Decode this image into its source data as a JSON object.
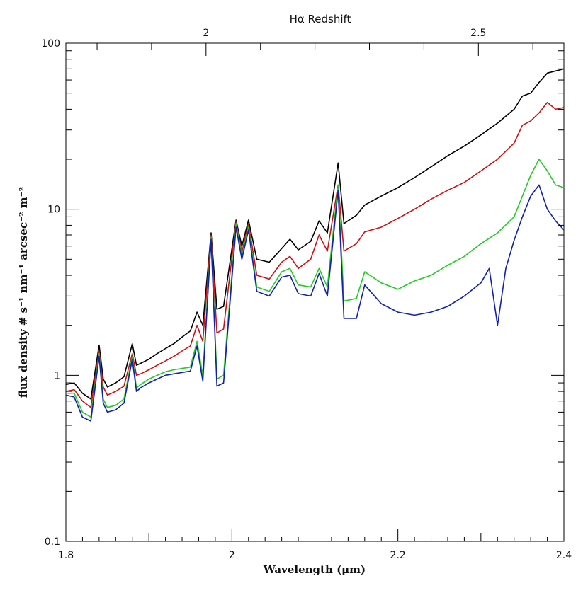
{
  "chart_data": {
    "type": "line",
    "title": "",
    "xlabel": "Wavelength (μm)",
    "ylabel": "flux density # s⁻¹ nm⁻¹ arcsec⁻² m⁻²",
    "top_axis_label": "Hα Redshift",
    "xlim": [
      1.8,
      2.4
    ],
    "ylim": [
      0.1,
      100
    ],
    "yscale": "log",
    "grid": false,
    "legend": "none",
    "x_ticks": [
      {
        "value": 1.8,
        "label": "1.8"
      },
      {
        "value": 2.0,
        "label": "2"
      },
      {
        "value": 2.2,
        "label": "2.2"
      },
      {
        "value": 2.4,
        "label": "2.4"
      }
    ],
    "y_ticks": [
      {
        "value": 0.1,
        "label": "0.1"
      },
      {
        "value": 1,
        "label": "1"
      },
      {
        "value": 10,
        "label": "10"
      },
      {
        "value": 100,
        "label": "100"
      }
    ],
    "top_ticks": [
      {
        "redshift": 2.0,
        "label": "2"
      },
      {
        "redshift": 2.5,
        "label": "2.5"
      }
    ],
    "series": [
      {
        "color": "#000000",
        "points": [
          [
            1.8,
            0.88
          ],
          [
            1.81,
            0.9
          ],
          [
            1.82,
            0.78
          ],
          [
            1.83,
            0.72
          ],
          [
            1.84,
            1.52
          ],
          [
            1.845,
            0.95
          ],
          [
            1.85,
            0.85
          ],
          [
            1.86,
            0.9
          ],
          [
            1.87,
            0.98
          ],
          [
            1.88,
            1.55
          ],
          [
            1.885,
            1.15
          ],
          [
            1.89,
            1.18
          ],
          [
            1.9,
            1.25
          ],
          [
            1.91,
            1.35
          ],
          [
            1.92,
            1.45
          ],
          [
            1.93,
            1.55
          ],
          [
            1.94,
            1.7
          ],
          [
            1.95,
            1.85
          ],
          [
            1.958,
            2.4
          ],
          [
            1.965,
            2.0
          ],
          [
            1.975,
            7.2
          ],
          [
            1.982,
            2.5
          ],
          [
            1.99,
            2.6
          ],
          [
            2.005,
            8.6
          ],
          [
            2.012,
            6.0
          ],
          [
            2.02,
            8.6
          ],
          [
            2.03,
            5.0
          ],
          [
            2.045,
            4.8
          ],
          [
            2.06,
            5.8
          ],
          [
            2.07,
            6.6
          ],
          [
            2.08,
            5.7
          ],
          [
            2.095,
            6.4
          ],
          [
            2.105,
            8.5
          ],
          [
            2.115,
            7.2
          ],
          [
            2.128,
            19.0
          ],
          [
            2.135,
            8.2
          ],
          [
            2.15,
            9.2
          ],
          [
            2.16,
            10.6
          ],
          [
            2.18,
            12.0
          ],
          [
            2.2,
            13.5
          ],
          [
            2.22,
            15.5
          ],
          [
            2.24,
            18.0
          ],
          [
            2.26,
            21.0
          ],
          [
            2.28,
            24.0
          ],
          [
            2.3,
            28.0
          ],
          [
            2.32,
            33.0
          ],
          [
            2.34,
            40.0
          ],
          [
            2.35,
            48.0
          ],
          [
            2.36,
            50.0
          ],
          [
            2.37,
            58.0
          ],
          [
            2.38,
            66.0
          ],
          [
            2.39,
            68.0
          ],
          [
            2.4,
            70.0
          ]
        ]
      },
      {
        "color": "#cc1111",
        "points": [
          [
            1.8,
            0.8
          ],
          [
            1.81,
            0.82
          ],
          [
            1.82,
            0.7
          ],
          [
            1.83,
            0.64
          ],
          [
            1.84,
            1.4
          ],
          [
            1.845,
            0.85
          ],
          [
            1.85,
            0.76
          ],
          [
            1.86,
            0.8
          ],
          [
            1.87,
            0.86
          ],
          [
            1.88,
            1.35
          ],
          [
            1.885,
            1.0
          ],
          [
            1.89,
            1.02
          ],
          [
            1.9,
            1.08
          ],
          [
            1.91,
            1.15
          ],
          [
            1.92,
            1.22
          ],
          [
            1.93,
            1.3
          ],
          [
            1.94,
            1.4
          ],
          [
            1.95,
            1.5
          ],
          [
            1.958,
            2.0
          ],
          [
            1.965,
            1.6
          ],
          [
            1.975,
            7.0
          ],
          [
            1.982,
            1.8
          ],
          [
            1.99,
            1.9
          ],
          [
            2.005,
            8.4
          ],
          [
            2.012,
            5.5
          ],
          [
            2.02,
            8.2
          ],
          [
            2.03,
            4.0
          ],
          [
            2.045,
            3.8
          ],
          [
            2.06,
            4.8
          ],
          [
            2.07,
            5.2
          ],
          [
            2.08,
            4.4
          ],
          [
            2.095,
            5.0
          ],
          [
            2.105,
            7.0
          ],
          [
            2.115,
            5.6
          ],
          [
            2.128,
            14.0
          ],
          [
            2.135,
            5.6
          ],
          [
            2.15,
            6.2
          ],
          [
            2.16,
            7.3
          ],
          [
            2.18,
            7.8
          ],
          [
            2.2,
            8.8
          ],
          [
            2.22,
            10.0
          ],
          [
            2.24,
            11.5
          ],
          [
            2.26,
            13.0
          ],
          [
            2.28,
            14.5
          ],
          [
            2.3,
            17.0
          ],
          [
            2.32,
            20.0
          ],
          [
            2.34,
            25.0
          ],
          [
            2.35,
            32.0
          ],
          [
            2.36,
            34.0
          ],
          [
            2.37,
            38.0
          ],
          [
            2.38,
            44.0
          ],
          [
            2.39,
            40.0
          ],
          [
            2.4,
            41.0
          ]
        ]
      },
      {
        "color": "#22cc22",
        "points": [
          [
            1.8,
            0.78
          ],
          [
            1.81,
            0.78
          ],
          [
            1.82,
            0.6
          ],
          [
            1.83,
            0.56
          ],
          [
            1.84,
            1.35
          ],
          [
            1.845,
            0.72
          ],
          [
            1.85,
            0.64
          ],
          [
            1.86,
            0.66
          ],
          [
            1.87,
            0.72
          ],
          [
            1.88,
            1.3
          ],
          [
            1.885,
            0.84
          ],
          [
            1.89,
            0.88
          ],
          [
            1.9,
            0.95
          ],
          [
            1.91,
            1.0
          ],
          [
            1.92,
            1.05
          ],
          [
            1.93,
            1.08
          ],
          [
            1.94,
            1.1
          ],
          [
            1.95,
            1.12
          ],
          [
            1.958,
            1.6
          ],
          [
            1.965,
            1.0
          ],
          [
            1.975,
            6.8
          ],
          [
            1.982,
            0.95
          ],
          [
            1.99,
            1.0
          ],
          [
            2.005,
            8.2
          ],
          [
            2.012,
            5.2
          ],
          [
            2.02,
            7.8
          ],
          [
            2.03,
            3.4
          ],
          [
            2.045,
            3.2
          ],
          [
            2.06,
            4.2
          ],
          [
            2.07,
            4.4
          ],
          [
            2.08,
            3.5
          ],
          [
            2.095,
            3.4
          ],
          [
            2.105,
            4.4
          ],
          [
            2.115,
            3.4
          ],
          [
            2.128,
            14.0
          ],
          [
            2.135,
            2.8
          ],
          [
            2.15,
            2.9
          ],
          [
            2.16,
            4.2
          ],
          [
            2.18,
            3.6
          ],
          [
            2.2,
            3.3
          ],
          [
            2.22,
            3.7
          ],
          [
            2.24,
            4.0
          ],
          [
            2.26,
            4.6
          ],
          [
            2.28,
            5.2
          ],
          [
            2.3,
            6.2
          ],
          [
            2.32,
            7.2
          ],
          [
            2.34,
            9.0
          ],
          [
            2.35,
            12.0
          ],
          [
            2.36,
            16.0
          ],
          [
            2.37,
            20.0
          ],
          [
            2.38,
            17.0
          ],
          [
            2.39,
            14.0
          ],
          [
            2.4,
            13.5
          ]
        ]
      },
      {
        "color": "#1122aa",
        "points": [
          [
            1.8,
            0.76
          ],
          [
            1.81,
            0.74
          ],
          [
            1.82,
            0.56
          ],
          [
            1.83,
            0.53
          ],
          [
            1.84,
            1.3
          ],
          [
            1.845,
            0.68
          ],
          [
            1.85,
            0.6
          ],
          [
            1.86,
            0.62
          ],
          [
            1.87,
            0.68
          ],
          [
            1.88,
            1.25
          ],
          [
            1.885,
            0.8
          ],
          [
            1.89,
            0.84
          ],
          [
            1.9,
            0.9
          ],
          [
            1.91,
            0.95
          ],
          [
            1.92,
            1.0
          ],
          [
            1.93,
            1.02
          ],
          [
            1.94,
            1.04
          ],
          [
            1.95,
            1.06
          ],
          [
            1.958,
            1.5
          ],
          [
            1.965,
            0.92
          ],
          [
            1.975,
            6.6
          ],
          [
            1.982,
            0.86
          ],
          [
            1.99,
            0.9
          ],
          [
            2.005,
            7.8
          ],
          [
            2.012,
            5.0
          ],
          [
            2.02,
            7.5
          ],
          [
            2.03,
            3.2
          ],
          [
            2.045,
            3.0
          ],
          [
            2.06,
            3.9
          ],
          [
            2.07,
            4.0
          ],
          [
            2.08,
            3.1
          ],
          [
            2.095,
            3.0
          ],
          [
            2.105,
            4.1
          ],
          [
            2.115,
            3.0
          ],
          [
            2.128,
            13.0
          ],
          [
            2.135,
            2.2
          ],
          [
            2.15,
            2.2
          ],
          [
            2.16,
            3.5
          ],
          [
            2.18,
            2.7
          ],
          [
            2.2,
            2.4
          ],
          [
            2.22,
            2.3
          ],
          [
            2.24,
            2.4
          ],
          [
            2.26,
            2.6
          ],
          [
            2.28,
            3.0
          ],
          [
            2.3,
            3.6
          ],
          [
            2.31,
            4.4
          ],
          [
            2.32,
            2.0
          ],
          [
            2.33,
            4.4
          ],
          [
            2.34,
            6.5
          ],
          [
            2.35,
            9.0
          ],
          [
            2.36,
            12.0
          ],
          [
            2.37,
            14.0
          ],
          [
            2.38,
            10.0
          ],
          [
            2.39,
            8.5
          ],
          [
            2.4,
            7.5
          ]
        ]
      }
    ]
  }
}
